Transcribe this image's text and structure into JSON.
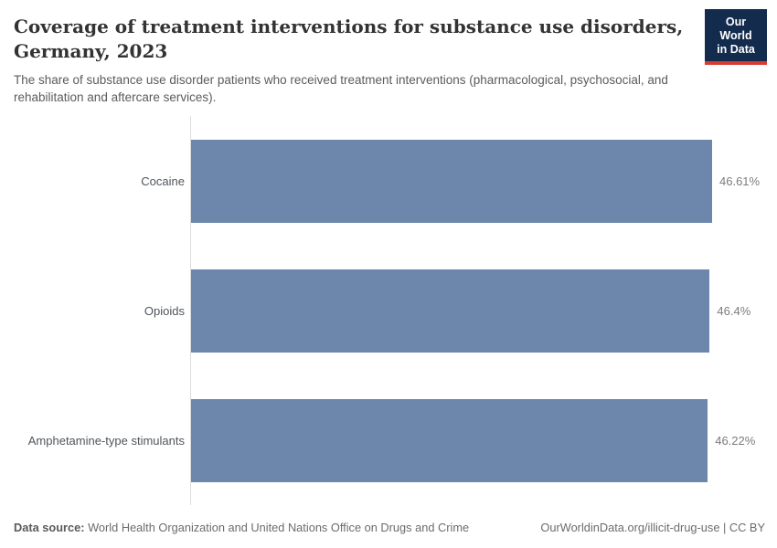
{
  "header": {
    "title_line1": "Coverage of treatment interventions for substance use disorders,",
    "title_line2": "Germany, 2023",
    "subtitle": "The share of substance use disorder patients who received treatment interventions (pharmacological, psychosocial, and rehabilitation and aftercare services).",
    "logo": {
      "line1": "Our World",
      "line2": "in Data",
      "bg_color": "#132b4d",
      "accent_color": "#d63c32"
    }
  },
  "chart_data": {
    "type": "bar",
    "orientation": "horizontal",
    "title": "Coverage of treatment interventions for substance use disorders, Germany, 2023",
    "subtitle": "The share of substance use disorder patients who received treatment interventions (pharmacological, psychosocial, and rehabilitation and aftercare services).",
    "categories": [
      "Cocaine",
      "Opioids",
      "Amphetamine-type stimulants"
    ],
    "values": [
      46.61,
      46.4,
      46.22
    ],
    "value_labels": [
      "46.61%",
      "46.4%",
      "46.22%"
    ],
    "xlabel": "",
    "ylabel": "",
    "xlim": [
      0,
      46.61
    ],
    "grid": false,
    "legend": false,
    "bar_color": "#6d86ac",
    "axis_line_color": "#dcdcdc"
  },
  "footer": {
    "datasource_label": "Data source:",
    "datasource_text": " World Health Organization and United Nations Office on Drugs and Crime",
    "link_text": "OurWorldinData.org/illicit-drug-use | CC BY"
  }
}
